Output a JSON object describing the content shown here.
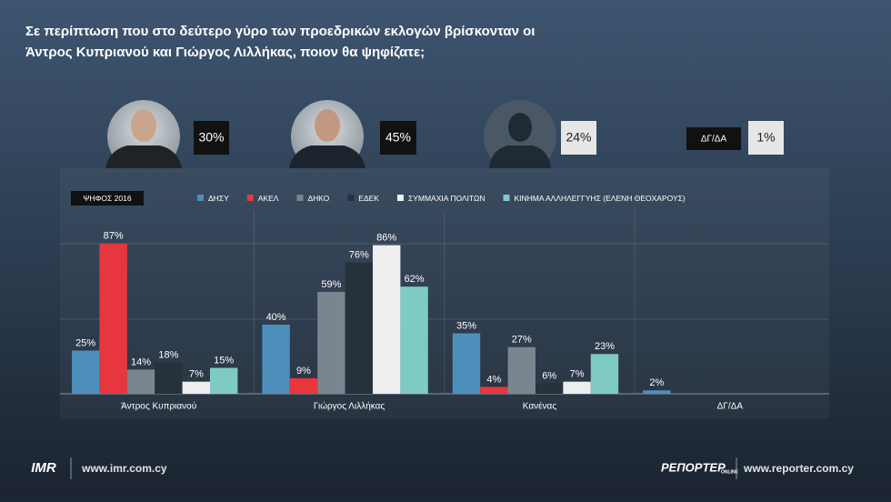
{
  "header": {
    "title_line1": "Σε περίπτωση που στο δεύτερο γύρο των προεδρικών εκλογών βρίσκονταν οι",
    "title_line2": "Άντρος Κυπριανού και Γιώργος Λιλλήκας, ποιον θα ψηφίζατε;"
  },
  "summary": [
    {
      "text": "30%"
    },
    {
      "text": "45%"
    },
    {
      "text": "24%"
    },
    {
      "label": "ΔΓ/ΔΑ",
      "text": "1%"
    }
  ],
  "chart_data": {
    "type": "bar",
    "legend_title": "ΨΗΦΟΣ 2016",
    "legend": "top",
    "grid": true,
    "categories": [
      "Άντρος Κυπριανού",
      "Γιώργος Λιλλήκας",
      "Κανένας",
      "ΔΓ/ΔΑ"
    ],
    "ylim": [
      0,
      90
    ],
    "series": [
      {
        "name": "ΔΗΣΥ",
        "color": "#4d8fbb",
        "values": [
          25,
          40,
          35,
          2
        ],
        "value_labels": [
          "25%",
          "40%",
          "35%",
          "2%"
        ]
      },
      {
        "name": "ΑΚΕΛ",
        "color": "#e8363f",
        "values": [
          87,
          9,
          4,
          null
        ],
        "value_labels": [
          "87%",
          "9%",
          "4%",
          null
        ]
      },
      {
        "name": "ΔΗΚΟ",
        "color": "#7b858f",
        "values": [
          14,
          59,
          27,
          null
        ],
        "value_labels": [
          "14%",
          "59%",
          "27%",
          null
        ]
      },
      {
        "name": "ΕΔΕΚ",
        "color": "#27313c",
        "values": [
          18,
          76,
          6,
          null
        ],
        "value_labels": [
          "18%",
          "76%",
          "6%",
          null
        ]
      },
      {
        "name": "ΣΥΜΜΑΧΙΑ ΠΟΛΙΤΩΝ",
        "color": "#eeeeee",
        "values": [
          7,
          86,
          7,
          null
        ],
        "value_labels": [
          "7%",
          "86%",
          "7%",
          null
        ]
      },
      {
        "name": "ΚΙΝΗΜΑ ΑΛΛΗΛΕΓΓΥΗΣ (ΕΛΕΝΗ ΘΕΟΧΑΡΟΥΣ)",
        "color": "#7fcbc3",
        "values": [
          15,
          62,
          23,
          null
        ],
        "value_labels": [
          "15%",
          "62%",
          "23%",
          null
        ]
      }
    ]
  },
  "footer": {
    "imr_logo": "IMR",
    "imr_url": "www.imr.com.cy",
    "reporter_logo": "ΡΕΠΟΡΤΕΡ",
    "reporter_logo_sub": "ONLINE",
    "reporter_url": "www.reporter.com.cy"
  }
}
